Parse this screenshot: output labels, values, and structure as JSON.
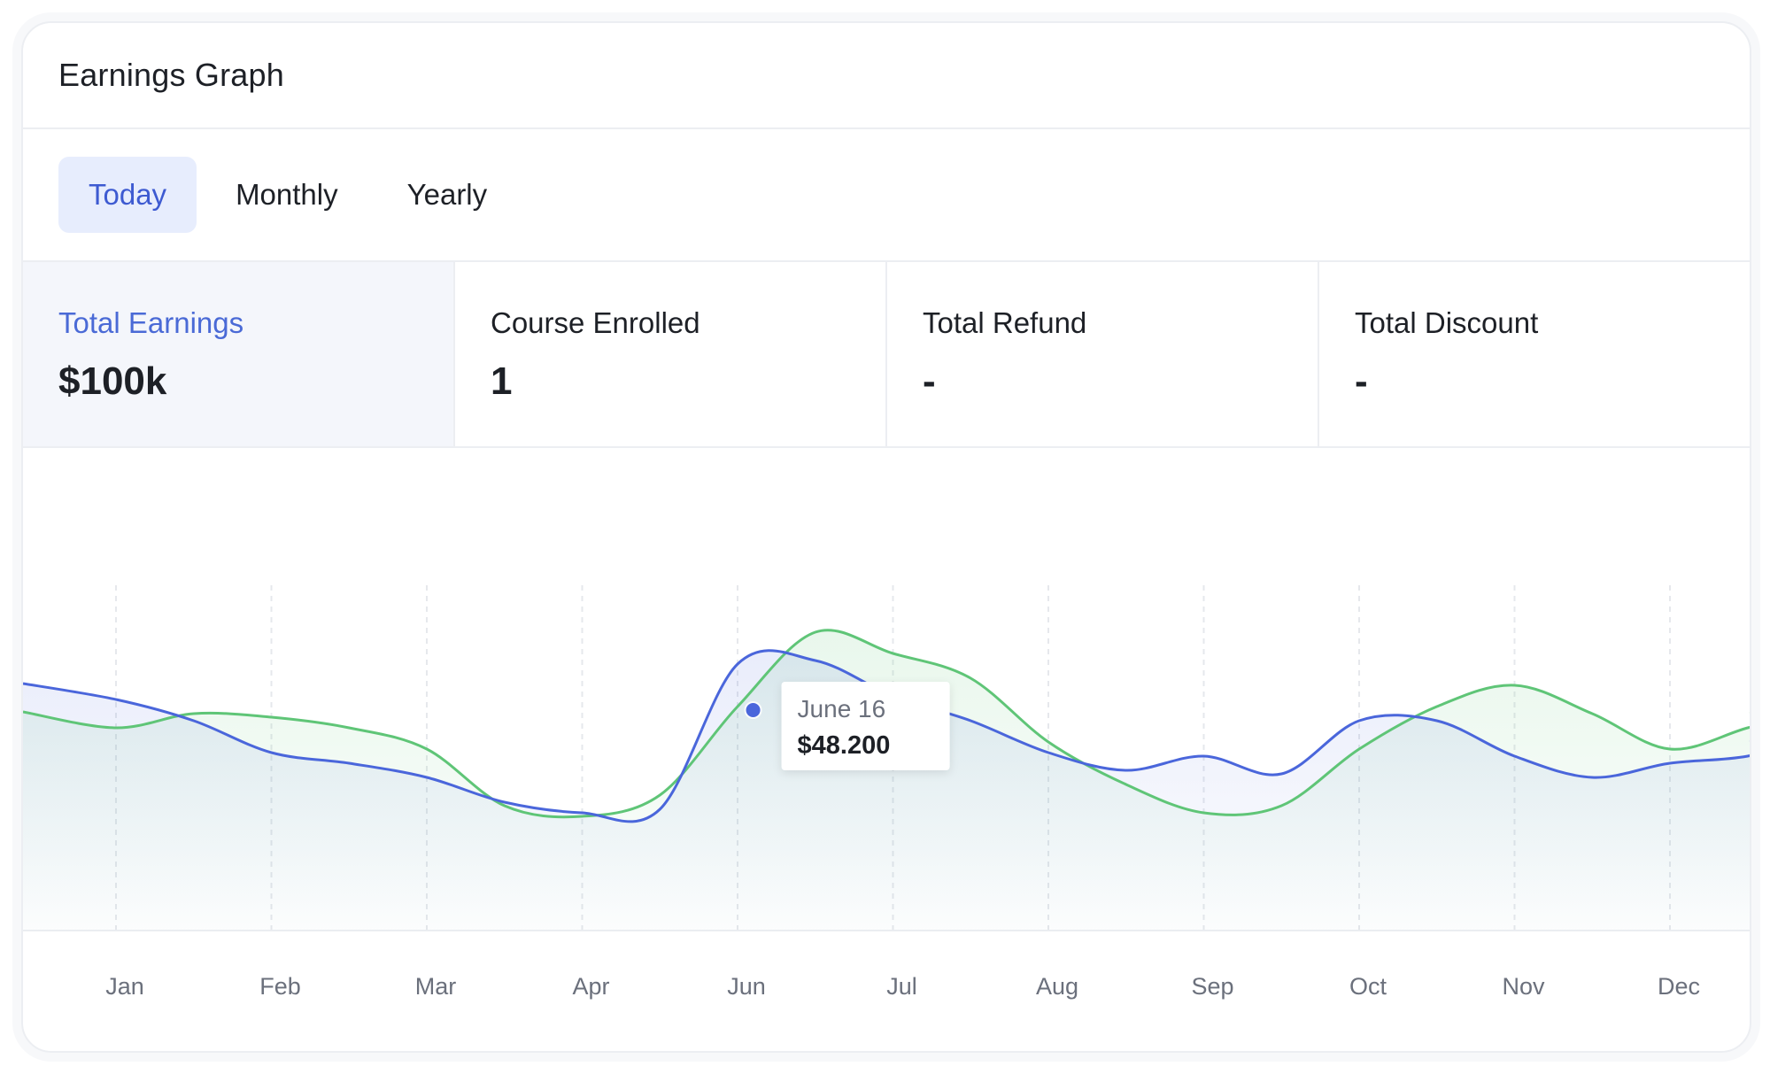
{
  "header": {
    "title": "Earnings Graph"
  },
  "tabs": [
    {
      "label": "Today",
      "active": true
    },
    {
      "label": "Monthly",
      "active": false
    },
    {
      "label": "Yearly",
      "active": false
    }
  ],
  "stats": [
    {
      "label": "Total Earnings",
      "value": "$100k",
      "active": true
    },
    {
      "label": "Course Enrolled",
      "value": "1",
      "active": false
    },
    {
      "label": "Total Refund",
      "value": "-",
      "active": false
    },
    {
      "label": "Total Discount",
      "value": "-",
      "active": false
    }
  ],
  "colors": {
    "accent": "#3d5ad1",
    "blue_series": "#4a66db",
    "green_series": "#5fc577"
  },
  "chart_data": {
    "type": "area",
    "categories": [
      "Jan",
      "Feb",
      "Mar",
      "Apr",
      "Jun",
      "Jul",
      "Aug",
      "Sep",
      "Oct",
      "Nov",
      "Dec"
    ],
    "x": [
      0,
      0.5,
      1,
      1.5,
      2,
      2.5,
      3,
      3.5,
      4,
      4.5,
      5,
      5.5,
      6,
      6.5,
      7,
      7.5,
      8,
      8.5,
      9,
      9.5,
      10,
      10.5,
      11
    ],
    "series": [
      {
        "values": [
          64,
          58,
          49,
          46,
          42,
          35,
          32,
          33,
          74,
          75,
          65,
          58,
          49,
          44,
          48,
          43,
          58,
          58,
          48,
          42,
          46,
          48,
          54
        ]
      },
      {
        "values": [
          56,
          60,
          59,
          56,
          50,
          34,
          31,
          37,
          62,
          83,
          77,
          70,
          52,
          40,
          32,
          34,
          50,
          62,
          68,
          60,
          50,
          56,
          62
        ]
      }
    ],
    "tooltip": {
      "label": "June 16",
      "value": "$48.200"
    },
    "grid": "vertical-dashed",
    "legend": "none"
  }
}
